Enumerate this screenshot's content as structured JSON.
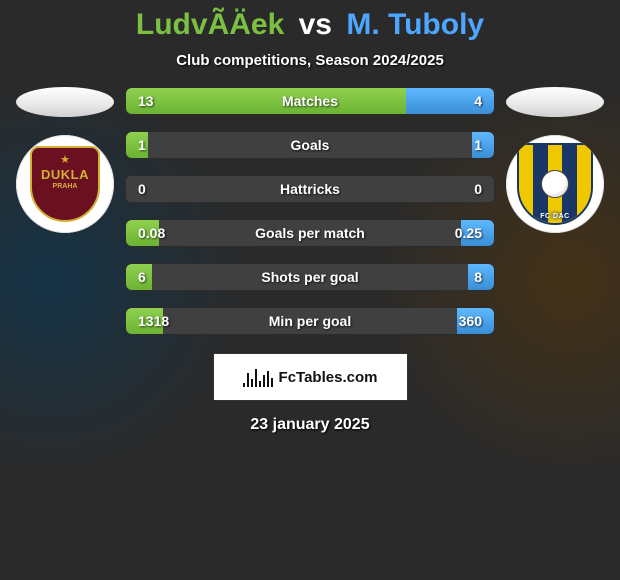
{
  "title": {
    "player1": "LudvÃÄek",
    "vs": "vs",
    "player2": "M. Tuboly"
  },
  "subtitle": "Club competitions, Season 2024/2025",
  "colors": {
    "player1": "#7bc043",
    "player2": "#4da6ff",
    "bar_left_top": "#8fd14f",
    "bar_left_bottom": "#6bb332",
    "bar_right_top": "#5fb8ff",
    "bar_right_bottom": "#3a8ed6",
    "bar_track": "#404040",
    "bg": "#2a2a2a"
  },
  "club_left": {
    "name": "DUKLA",
    "sub": "PRAHA",
    "colors": {
      "bg": "#6b1020",
      "accent": "#d4af37"
    }
  },
  "club_right": {
    "label": "FC DAC",
    "colors": {
      "blue": "#1a3766",
      "yellow": "#f0c800"
    }
  },
  "stats": [
    {
      "label": "Matches",
      "left_val": "13",
      "right_val": "4",
      "left_pct": 76,
      "right_pct": 24
    },
    {
      "label": "Goals",
      "left_val": "1",
      "right_val": "1",
      "left_pct": 6,
      "right_pct": 6
    },
    {
      "label": "Hattricks",
      "left_val": "0",
      "right_val": "0",
      "left_pct": 0,
      "right_pct": 0
    },
    {
      "label": "Goals per match",
      "left_val": "0.08",
      "right_val": "0.25",
      "left_pct": 9,
      "right_pct": 9
    },
    {
      "label": "Shots per goal",
      "left_val": "6",
      "right_val": "8",
      "left_pct": 7,
      "right_pct": 7
    },
    {
      "label": "Min per goal",
      "left_val": "1318",
      "right_val": "360",
      "left_pct": 10,
      "right_pct": 10
    }
  ],
  "footer": {
    "brand": "FcTables.com",
    "bars": [
      4,
      14,
      8,
      18,
      6,
      12,
      16,
      9
    ]
  },
  "date": "23 january 2025"
}
